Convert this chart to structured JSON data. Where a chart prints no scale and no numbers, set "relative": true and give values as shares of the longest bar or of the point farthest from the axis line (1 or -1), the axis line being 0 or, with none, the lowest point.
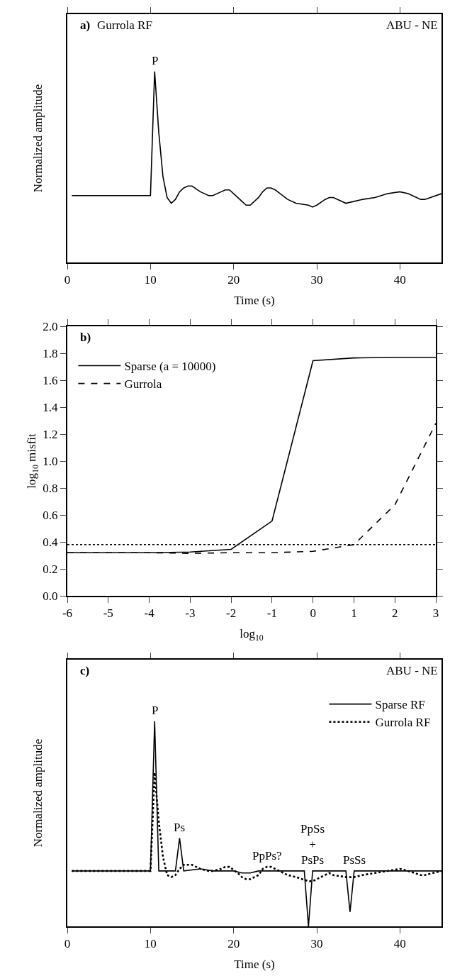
{
  "chart_data": [
    {
      "type": "line",
      "title": "a)",
      "xlabel": "Time (s)",
      "ylabel": "Normalized amplitude",
      "relative": true,
      "tick_labels": "x",
      "xlim": [
        0,
        45
      ],
      "xticks": [
        0,
        10,
        20,
        30,
        40
      ],
      "grid": false,
      "legend": false,
      "annotations": [
        "Gurrola RF",
        "ABU - NE",
        {
          "text": "P",
          "x": 10.5,
          "y": 1.0
        }
      ],
      "x": [
        0.54,
        10,
        10.5,
        11,
        11.5,
        12,
        12.5,
        13,
        13.5,
        14,
        14.5,
        15,
        16,
        17,
        17.5,
        18.5,
        19,
        19.5,
        20.5,
        21,
        21.5,
        22,
        23,
        23.5,
        24,
        24.5,
        25,
        26.5,
        27.5,
        29,
        29.5,
        30,
        31,
        31.5,
        32,
        33.5,
        34.5,
        35.5,
        37,
        38.5,
        40,
        41,
        42.5,
        43,
        45
      ],
      "series": [
        {
          "color": "#000000",
          "values": [
            0.35,
            0.35,
            1.0,
            0.68,
            0.45,
            0.34,
            0.31,
            0.33,
            0.37,
            0.39,
            0.4,
            0.4,
            0.37,
            0.35,
            0.35,
            0.37,
            0.38,
            0.38,
            0.34,
            0.32,
            0.3,
            0.3,
            0.34,
            0.37,
            0.39,
            0.39,
            0.38,
            0.33,
            0.31,
            0.3,
            0.29,
            0.3,
            0.33,
            0.34,
            0.34,
            0.31,
            0.32,
            0.33,
            0.34,
            0.36,
            0.37,
            0.36,
            0.33,
            0.33,
            0.36
          ]
        }
      ]
    },
    {
      "type": "line",
      "title": "b)",
      "xlabel": "log$_{10}$",
      "ylabel": "log$_{10}$ misfit",
      "xlim": [
        -6,
        3
      ],
      "xticks": [
        -6,
        -5,
        -4,
        -3,
        -2,
        -1,
        0,
        1,
        2,
        3
      ],
      "ylim": [
        0,
        2
      ],
      "yticks": [
        {
          "value": 0,
          "label": "0.0"
        },
        0.2,
        0.4,
        0.6,
        0.8,
        {
          "value": 1,
          "label": "1.0"
        },
        1.2,
        1.4,
        1.6,
        1.8,
        {
          "value": 2,
          "label": "2.0"
        }
      ],
      "grid": false,
      "legend": "top left",
      "x": [
        -6,
        -5,
        -4,
        -3,
        -2,
        -1,
        0,
        1,
        2,
        3
      ],
      "series": [
        {
          "name": "Sparse (a = 10000)",
          "color": "#000000",
          "line_style": "solid",
          "values": [
            0.32,
            0.32,
            0.32,
            0.325,
            0.345,
            0.555,
            1.745,
            1.765,
            1.77,
            1.77
          ]
        },
        {
          "name": "Gurrola",
          "color": "#000000",
          "line_style": "dashed",
          "values": [
            0.32,
            0.32,
            0.32,
            0.315,
            0.32,
            0.32,
            0.33,
            0.38,
            0.675,
            1.28
          ]
        }
      ],
      "ref_lines": [
        {
          "axis": "y",
          "value": 0.38,
          "color": "#000000",
          "line_style": "dotted"
        }
      ]
    },
    {
      "type": "line",
      "title": "c)",
      "xlabel": "Time (s)",
      "ylabel": "Normalized amplitude",
      "relative": true,
      "tick_labels": "x",
      "xlim": [
        0,
        45
      ],
      "xticks": [
        0,
        10,
        20,
        30,
        40
      ],
      "grid": false,
      "legend": "top right",
      "annotations": [
        "ABU - NE",
        {
          "text": "P",
          "x": 10.5,
          "y": 1.0
        },
        {
          "text": "Ps",
          "x": 13.5,
          "y": 0.43
        },
        {
          "text": "PpPs?",
          "x": 24,
          "y": 0.29
        },
        {
          "text": "PpSs\n+\nPsPs",
          "x": 29.5,
          "y": 0.27
        },
        {
          "text": "PsSs",
          "x": 34.5,
          "y": 0.27
        }
      ],
      "series": [
        {
          "name": "Sparse RF",
          "color": "#000000",
          "line_style": "solid",
          "x": [
            0.54,
            10,
            10.5,
            11,
            13,
            13.5,
            14,
            16,
            17.5,
            20,
            21,
            22,
            23,
            25,
            28,
            28.5,
            29,
            29.5,
            33,
            33.5,
            34,
            34.5,
            38,
            41,
            42.5,
            45
          ],
          "values": [
            0.27,
            0.27,
            1.0,
            0.27,
            0.27,
            0.43,
            0.27,
            0.28,
            0.27,
            0.27,
            0.26,
            0.26,
            0.27,
            0.27,
            0.27,
            0.27,
            0.0,
            0.27,
            0.27,
            0.27,
            0.07,
            0.27,
            0.27,
            0.27,
            0.27,
            0.27
          ]
        },
        {
          "name": "Gurrola RF",
          "color": "#000000",
          "line_style": "dotted",
          "x": [
            0.54,
            10,
            10.5,
            11,
            11.5,
            12,
            12.5,
            13,
            13.5,
            14,
            14.5,
            15,
            16,
            17,
            17.5,
            18.5,
            19,
            19.5,
            20.5,
            21,
            21.5,
            22,
            23,
            23.5,
            24,
            24.5,
            25,
            26.5,
            27.5,
            29,
            29.5,
            30,
            31,
            31.5,
            32,
            33.5,
            34.5,
            35.5,
            37,
            38.5,
            40,
            41,
            42.5,
            43,
            45
          ],
          "values": [
            0.27,
            0.27,
            0.75,
            0.51,
            0.34,
            0.25,
            0.24,
            0.25,
            0.28,
            0.3,
            0.3,
            0.3,
            0.28,
            0.27,
            0.27,
            0.28,
            0.29,
            0.29,
            0.26,
            0.24,
            0.23,
            0.23,
            0.25,
            0.28,
            0.29,
            0.29,
            0.28,
            0.25,
            0.24,
            0.22,
            0.22,
            0.23,
            0.25,
            0.26,
            0.25,
            0.24,
            0.24,
            0.25,
            0.26,
            0.27,
            0.28,
            0.27,
            0.25,
            0.25,
            0.27
          ]
        }
      ]
    }
  ]
}
